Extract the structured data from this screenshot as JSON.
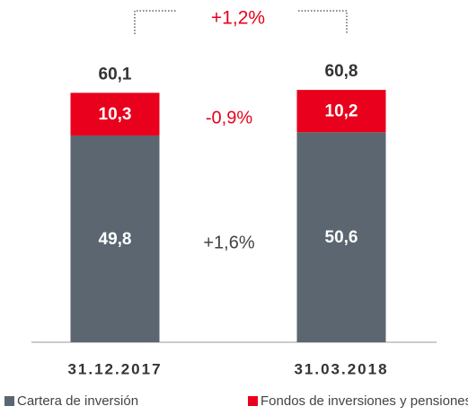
{
  "chart_data": {
    "type": "stacked_bar",
    "categories": [
      "31.12.2017",
      "31.03.2018"
    ],
    "series": [
      {
        "name": "Cartera de inversión",
        "color": "#5b6670",
        "values": [
          49.8,
          50.6
        ],
        "value_labels": [
          "49,8",
          "50,6"
        ]
      },
      {
        "name": "Fondos de inversiones y pensiones",
        "color": "#e8001c",
        "values": [
          10.3,
          10.2
        ],
        "value_labels": [
          "10,3",
          "10,2"
        ]
      }
    ],
    "totals": [
      60.1,
      60.8
    ],
    "total_labels": [
      "60,1",
      "60,8"
    ],
    "annotations": [
      "+1,2%",
      "-0,9%",
      "+1,6%"
    ]
  }
}
